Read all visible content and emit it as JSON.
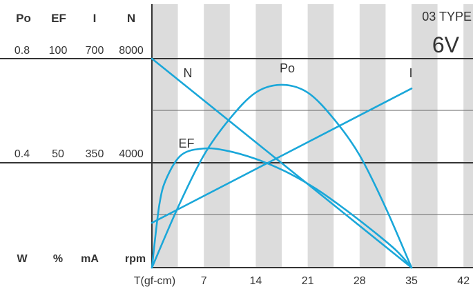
{
  "chart_data": {
    "type": "line",
    "model_type": "03 TYPE",
    "voltage": "6V",
    "xlabel": "T(gf-cm)",
    "x_ticks": [
      7,
      14,
      21,
      28,
      35,
      42
    ],
    "xlim": [
      0,
      42
    ],
    "axes": [
      {
        "name": "Po",
        "unit": "W",
        "ticks": [
          "0.8",
          "0.4"
        ],
        "values": [
          0.8,
          0.4
        ]
      },
      {
        "name": "EF",
        "unit": "%",
        "ticks": [
          "100",
          "50"
        ],
        "values": [
          100,
          50
        ]
      },
      {
        "name": "I",
        "unit": "mA",
        "ticks": [
          "700",
          "350"
        ],
        "values": [
          700,
          350
        ]
      },
      {
        "name": "N",
        "unit": "rpm",
        "ticks": [
          "8000",
          "4000"
        ],
        "values": [
          8000,
          4000
        ]
      }
    ],
    "series": [
      {
        "name": "N",
        "axis": "rpm",
        "x": [
          0,
          35
        ],
        "y": [
          8000,
          0
        ]
      },
      {
        "name": "I",
        "axis": "mA",
        "x": [
          0,
          35
        ],
        "y": [
          150,
          600
        ]
      },
      {
        "name": "Po",
        "axis": "W",
        "x": [
          0,
          3.5,
          7,
          10.5,
          14,
          17.5,
          21,
          24.5,
          28,
          31.5,
          35
        ],
        "y": [
          0,
          0.23,
          0.43,
          0.57,
          0.67,
          0.7,
          0.67,
          0.57,
          0.43,
          0.23,
          0
        ]
      },
      {
        "name": "EF",
        "axis": "%",
        "x": [
          0,
          1,
          2,
          4,
          7,
          10,
          14,
          18,
          22,
          26,
          30,
          33,
          35
        ],
        "y": [
          0,
          30,
          43,
          54,
          57,
          56,
          52,
          46,
          38,
          28,
          17,
          8,
          0
        ]
      }
    ],
    "color": "#1aa7d9",
    "stripe_color": "#dcdcdc"
  }
}
